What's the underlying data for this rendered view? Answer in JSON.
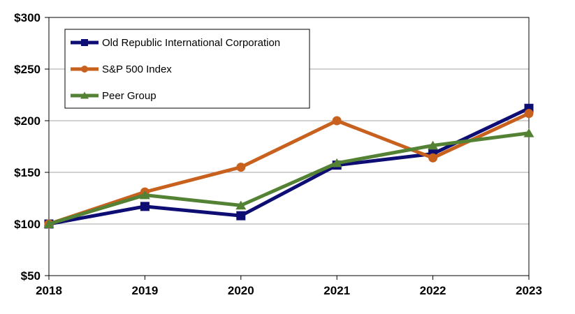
{
  "chart_data": {
    "type": "line",
    "title": "",
    "xlabel": "",
    "ylabel": "",
    "categories": [
      "2018",
      "2019",
      "2020",
      "2021",
      "2022",
      "2023"
    ],
    "ylim": [
      50,
      300
    ],
    "yticks": [
      50,
      100,
      150,
      200,
      250,
      300
    ],
    "ytick_labels": [
      "$50",
      "$100",
      "$150",
      "$200",
      "$250",
      "$300"
    ],
    "grid": true,
    "legend_position": "top-left",
    "series": [
      {
        "name": "Old Republic International Corporation",
        "color": "#0d0d73",
        "marker": "square",
        "values": [
          100,
          117,
          108,
          157,
          168,
          212
        ]
      },
      {
        "name": "S&P 500 Index",
        "color": "#c8611e",
        "marker": "circle",
        "values": [
          100,
          131,
          155,
          200,
          164,
          207
        ]
      },
      {
        "name": "Peer Group",
        "color": "#548235",
        "marker": "triangle",
        "values": [
          100,
          128,
          118,
          159,
          176,
          188
        ]
      }
    ]
  }
}
